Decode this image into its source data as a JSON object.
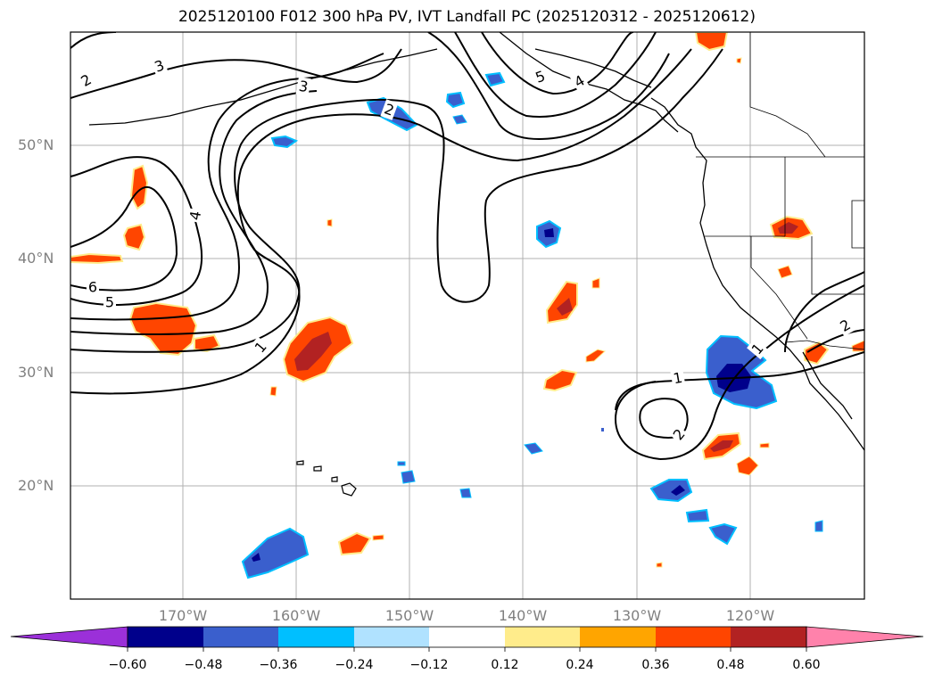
{
  "title": "2025120100 F012 300 hPa PV, IVT Landfall PC (2025120312 - 2025120612)",
  "map": {
    "lat_labels": [
      "50°N",
      "40°N",
      "30°N",
      "20°N"
    ],
    "lon_labels": [
      "170°W",
      "160°W",
      "150°W",
      "140°W",
      "130°W",
      "120°W"
    ],
    "grid_color": "#b0b0b0",
    "contour_labels": [
      "2",
      "3",
      "3",
      "4",
      "5",
      "6",
      "5",
      "2",
      "5",
      "4",
      "1",
      "1",
      "2",
      "1",
      "1",
      "2"
    ]
  },
  "colorbar": {
    "colors": [
      "#9b30d9",
      "#00008b",
      "#3a5fcd",
      "#00bfff",
      "#b0e2ff",
      "#ffffff",
      "#ffec8b",
      "#ffa500",
      "#ff4500",
      "#b22222",
      "#ff82ab"
    ],
    "tick_labels": [
      "−0.60",
      "−0.48",
      "−0.36",
      "−0.24",
      "−0.12",
      "0.12",
      "0.24",
      "0.36",
      "0.48",
      "0.60"
    ]
  }
}
